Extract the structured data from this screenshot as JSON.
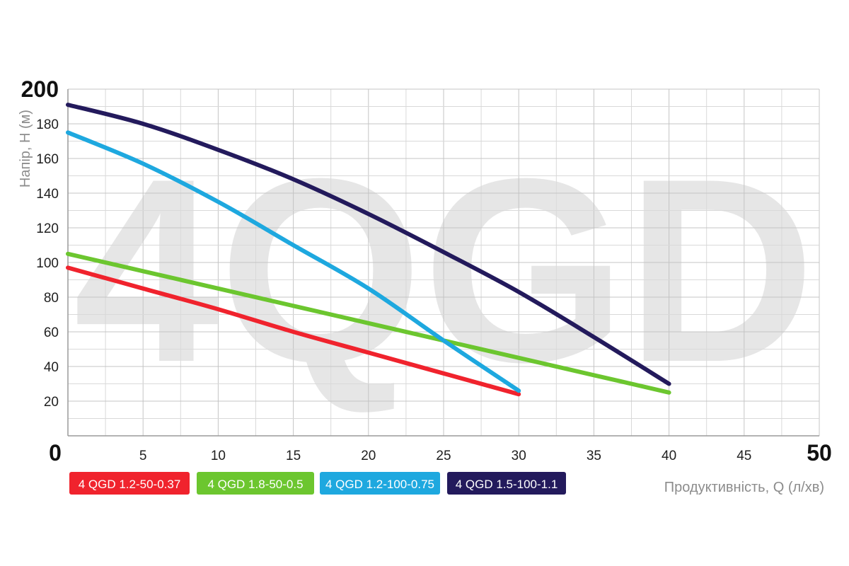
{
  "chart_data": {
    "type": "line",
    "title": "",
    "watermark": "4QGD",
    "xlabel": "Продуктивність, Q (л/хв)",
    "ylabel": "Напір, H (м)",
    "xlim": [
      0,
      50
    ],
    "ylim": [
      0,
      200
    ],
    "x_ticks": [
      "0",
      "5",
      "10",
      "15",
      "20",
      "25",
      "30",
      "35",
      "40",
      "45",
      "50"
    ],
    "y_ticks": [
      "20",
      "40",
      "60",
      "80",
      "100",
      "120",
      "140",
      "160",
      "180",
      "200"
    ],
    "grid": true,
    "legend_position": "bottom-left",
    "series": [
      {
        "name": "4 QGD 1.2-50-0.37",
        "color": "#f0232d",
        "points": [
          [
            0,
            97
          ],
          [
            5,
            85
          ],
          [
            10,
            73
          ],
          [
            15,
            60
          ],
          [
            20,
            48
          ],
          [
            25,
            36
          ],
          [
            30,
            24
          ]
        ]
      },
      {
        "name": "4 QGD 1.8-50-0.5",
        "color": "#6cc62f",
        "points": [
          [
            0,
            105
          ],
          [
            5,
            95
          ],
          [
            10,
            85
          ],
          [
            15,
            75
          ],
          [
            20,
            65
          ],
          [
            25,
            55
          ],
          [
            30,
            45
          ],
          [
            35,
            35
          ],
          [
            40,
            25
          ]
        ]
      },
      {
        "name": "4 QGD 1.2-100-0.75",
        "color": "#1ea8df",
        "points": [
          [
            0,
            175
          ],
          [
            5,
            157
          ],
          [
            10,
            135
          ],
          [
            15,
            110
          ],
          [
            20,
            85
          ],
          [
            25,
            55
          ],
          [
            30,
            26
          ]
        ]
      },
      {
        "name": "4 QGD 1.5-100-1.1",
        "color": "#231a5c",
        "points": [
          [
            0,
            191
          ],
          [
            5,
            180
          ],
          [
            10,
            165
          ],
          [
            15,
            148
          ],
          [
            20,
            128
          ],
          [
            25,
            106
          ],
          [
            30,
            83
          ],
          [
            35,
            57
          ],
          [
            40,
            30
          ]
        ]
      }
    ]
  }
}
